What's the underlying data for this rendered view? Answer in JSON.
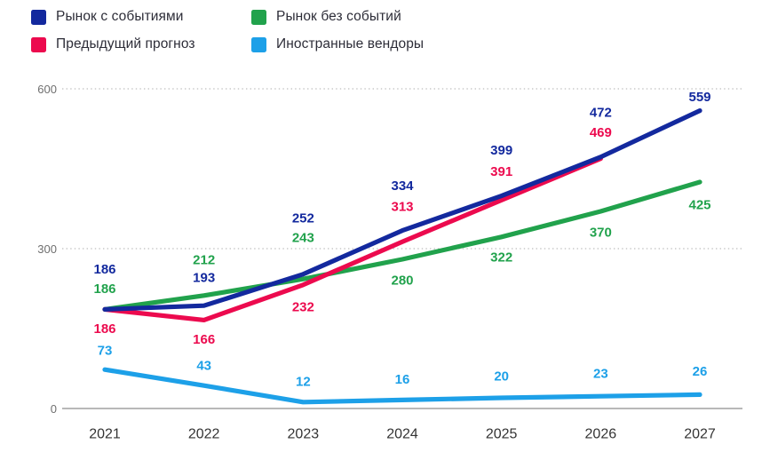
{
  "legend": {
    "items": [
      {
        "id": "market-with-events",
        "label": "Рынок с событиями",
        "color": "#13299e"
      },
      {
        "id": "market-without-events",
        "label": "Рынок без событий",
        "color": "#21a24c"
      },
      {
        "id": "previous-forecast",
        "label": "Предыдущий прогноз",
        "color": "#ec0a4e"
      },
      {
        "id": "foreign-vendors",
        "label": "Иностранные вендоры",
        "color": "#1da0e8"
      }
    ]
  },
  "chart_data": {
    "type": "line",
    "title": "",
    "xlabel": "",
    "ylabel": "",
    "x": [
      "2021",
      "2022",
      "2023",
      "2024",
      "2025",
      "2026",
      "2027"
    ],
    "y_ticks": [
      0,
      300,
      600
    ],
    "ylim": [
      0,
      600
    ],
    "grid": "dotted horizontal gridlines at 300 and 600, solid axis line at 0",
    "legend_position": "top-left",
    "series": [
      {
        "id": "market-without-events",
        "name": "Рынок без событий",
        "color": "#21a24c",
        "values": [
          186,
          212,
          243,
          280,
          322,
          370,
          425
        ],
        "label_dy": [
          -23,
          -40,
          -46,
          24,
          23,
          24,
          26
        ]
      },
      {
        "id": "previous-forecast",
        "name": "Предыдущий прогноз",
        "color": "#ec0a4e",
        "values": [
          186,
          166,
          232,
          313,
          391,
          469
        ],
        "label_dy": [
          22,
          22,
          25,
          -39,
          -32,
          -29
        ]
      },
      {
        "id": "market-with-events",
        "name": "Рынок с событиями",
        "color": "#13299e",
        "values": [
          186,
          193,
          252,
          334,
          399,
          472,
          559
        ],
        "label_dy": [
          -45,
          -31,
          -63,
          -50,
          -51,
          -50,
          -15
        ]
      },
      {
        "id": "foreign-vendors",
        "name": "Иностранные вендоры",
        "color": "#1da0e8",
        "values": [
          73,
          43,
          12,
          16,
          20,
          23,
          26
        ],
        "label_dy": [
          -21,
          -22,
          -23,
          -23,
          -24,
          -25,
          -26
        ]
      }
    ]
  },
  "colors": {
    "gridline": "#bdbdbd",
    "axis": "#a0a0a0",
    "ytick_text": "#6f6f6f",
    "xtick_text": "#333333",
    "legend_text": "#2d2d38",
    "background": "#ffffff"
  }
}
